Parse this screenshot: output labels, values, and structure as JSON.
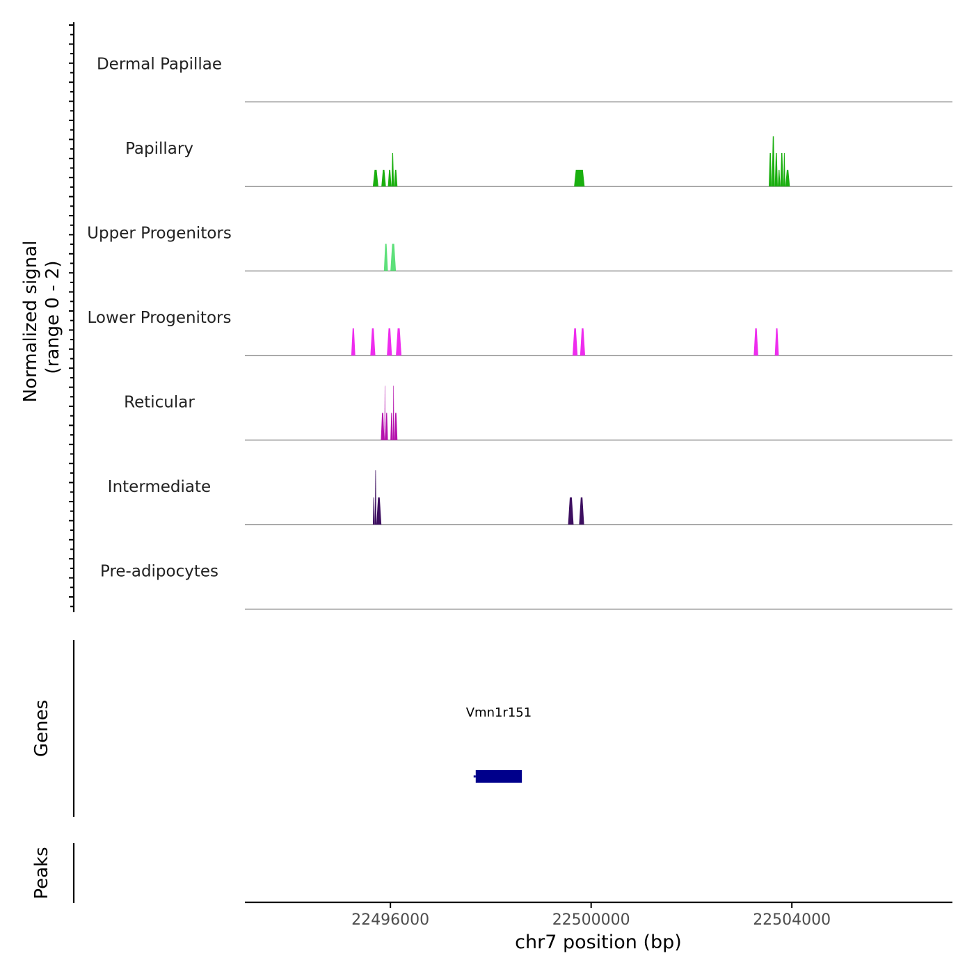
{
  "chart_data": {
    "type": "area",
    "chromosome": "chr7",
    "xlim": [
      22493100,
      22507200
    ],
    "x_ticks": [
      22496000,
      22500000,
      22504000
    ],
    "x_tick_labels": [
      "22496000",
      "22500000",
      "22504000"
    ],
    "xlabel": "chr7 position (bp)",
    "coverage": {
      "ylabel_line1": "Normalized signal",
      "ylabel_line2": "(range 0 - 2)",
      "ylim": [
        0,
        2
      ],
      "tracks": [
        {
          "name": "Dermal Papillae",
          "color": "#00a000",
          "peaks": []
        },
        {
          "name": "Papillary",
          "color": "#1aaf0f",
          "peaks": [
            {
              "start": 22495650,
              "end": 22495760,
              "value": 0.8
            },
            {
              "start": 22495820,
              "end": 22495910,
              "value": 0.8
            },
            {
              "start": 22495950,
              "end": 22496020,
              "value": 0.8
            },
            {
              "start": 22496020,
              "end": 22496070,
              "value": 1.6
            },
            {
              "start": 22496070,
              "end": 22496140,
              "value": 0.8
            },
            {
              "start": 22499660,
              "end": 22499870,
              "value": 0.8
            },
            {
              "start": 22503540,
              "end": 22503600,
              "value": 1.6
            },
            {
              "start": 22503600,
              "end": 22503660,
              "value": 2.4
            },
            {
              "start": 22503660,
              "end": 22503720,
              "value": 1.6
            },
            {
              "start": 22503720,
              "end": 22503770,
              "value": 0.8
            },
            {
              "start": 22503770,
              "end": 22503830,
              "value": 1.6
            },
            {
              "start": 22503830,
              "end": 22503870,
              "value": 1.6
            },
            {
              "start": 22503870,
              "end": 22503960,
              "value": 0.8
            }
          ]
        },
        {
          "name": "Upper Progenitors",
          "color": "#5de07a",
          "peaks": [
            {
              "start": 22495870,
              "end": 22495950,
              "value": 1.3
            },
            {
              "start": 22496000,
              "end": 22496110,
              "value": 1.3
            }
          ]
        },
        {
          "name": "Lower Progenitors",
          "color": "#ee2cee",
          "peaks": [
            {
              "start": 22495220,
              "end": 22495300,
              "value": 1.3
            },
            {
              "start": 22495600,
              "end": 22495700,
              "value": 1.3
            },
            {
              "start": 22495930,
              "end": 22496030,
              "value": 1.3
            },
            {
              "start": 22496110,
              "end": 22496220,
              "value": 1.3
            },
            {
              "start": 22499630,
              "end": 22499730,
              "value": 1.3
            },
            {
              "start": 22499780,
              "end": 22499880,
              "value": 1.3
            },
            {
              "start": 22503240,
              "end": 22503330,
              "value": 1.3
            },
            {
              "start": 22503660,
              "end": 22503740,
              "value": 1.3
            }
          ]
        },
        {
          "name": "Reticular",
          "color": "#b513ad",
          "peaks": [
            {
              "start": 22495810,
              "end": 22495880,
              "value": 1.3
            },
            {
              "start": 22495880,
              "end": 22495900,
              "value": 2.6
            },
            {
              "start": 22495900,
              "end": 22495950,
              "value": 1.3
            },
            {
              "start": 22496000,
              "end": 22496050,
              "value": 1.3
            },
            {
              "start": 22496050,
              "end": 22496075,
              "value": 2.6
            },
            {
              "start": 22496075,
              "end": 22496140,
              "value": 1.3
            }
          ]
        },
        {
          "name": "Intermediate",
          "color": "#3d0f60",
          "peaks": [
            {
              "start": 22495650,
              "end": 22495690,
              "value": 1.3
            },
            {
              "start": 22495690,
              "end": 22495720,
              "value": 2.6
            },
            {
              "start": 22495720,
              "end": 22495820,
              "value": 1.3
            },
            {
              "start": 22499540,
              "end": 22499650,
              "value": 1.3
            },
            {
              "start": 22499760,
              "end": 22499860,
              "value": 1.3
            }
          ]
        },
        {
          "name": "Pre-adipocytes",
          "color": "#c9a0dc",
          "peaks": []
        }
      ]
    },
    "genes": {
      "ylabel": "Genes",
      "items": [
        {
          "name": "Vmn1r151",
          "start": 22497700,
          "end": 22498620,
          "color": "#00008b"
        }
      ]
    },
    "peaks_track": {
      "ylabel": "Peaks",
      "items": []
    }
  }
}
